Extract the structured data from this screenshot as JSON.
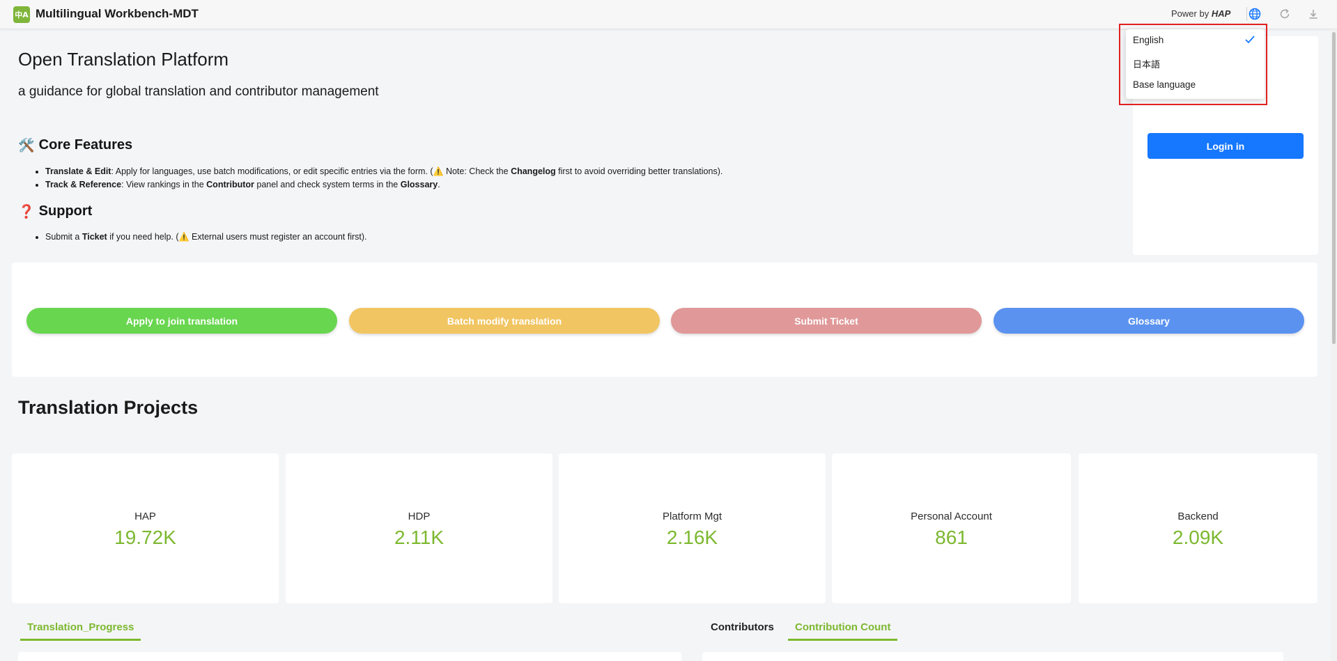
{
  "app": {
    "logo_text": "中A",
    "title": "Multilingual Workbench-MDT",
    "power_prefix": "Power by ",
    "power_brand": "HAP"
  },
  "icons": {
    "language": "globe-icon",
    "refresh": "refresh-icon",
    "download": "download-icon",
    "check": "check-icon"
  },
  "intro": {
    "title": "Open Translation Platform",
    "subtitle": "a guidance for global translation and contributor management"
  },
  "core": {
    "emoji": "🛠️",
    "heading": "Core Features",
    "bullets": [
      {
        "b1": "Translate & Edit",
        "t1": ": Apply for languages, use batch modifications, or edit specific entries via the form. (",
        "warn": "⚠️",
        "t2": " Note: Check the ",
        "b2": "Changelog",
        "t3": " first to avoid overriding better translations)."
      },
      {
        "b1": "Track & Reference",
        "t1": ": View rankings in the ",
        "b2": "Contributor",
        "t2": " panel and check system terms in the ",
        "b3": "Glossary",
        "t3": "."
      }
    ]
  },
  "support": {
    "emoji": "❓",
    "heading": "Support",
    "bullet": {
      "t1": "Submit a ",
      "b1": "Ticket",
      "t2": " if you need help. (",
      "warn": "⚠️",
      "t3": " External users must register an account first)."
    }
  },
  "login": {
    "button": "Login in"
  },
  "actions": {
    "apply": {
      "label": "Apply to join translation",
      "color": "#68d64f"
    },
    "batch": {
      "label": "Batch modify translation",
      "color": "#f1c561"
    },
    "ticket": {
      "label": "Submit Ticket",
      "color": "#e09898"
    },
    "glossary": {
      "label": "Glossary",
      "color": "#5b92f0"
    }
  },
  "projects": {
    "title": "Translation Projects",
    "items": [
      {
        "name": "HAP",
        "value": "19.72K"
      },
      {
        "name": "HDP",
        "value": "2.11K"
      },
      {
        "name": "Platform Mgt",
        "value": "2.16K"
      },
      {
        "name": "Personal Account",
        "value": "861"
      },
      {
        "name": "Backend",
        "value": "2.09K"
      }
    ]
  },
  "tabs": {
    "progress": "Translation_Progress",
    "contributors": "Contributors",
    "count": "Contribution Count"
  },
  "language_menu": {
    "options": [
      "English",
      "日本語",
      "Base language"
    ],
    "selected": "English"
  },
  "colors": {
    "accent_green": "#7cb82f",
    "primary_blue": "#1677ff",
    "highlight_red": "#e02020"
  }
}
